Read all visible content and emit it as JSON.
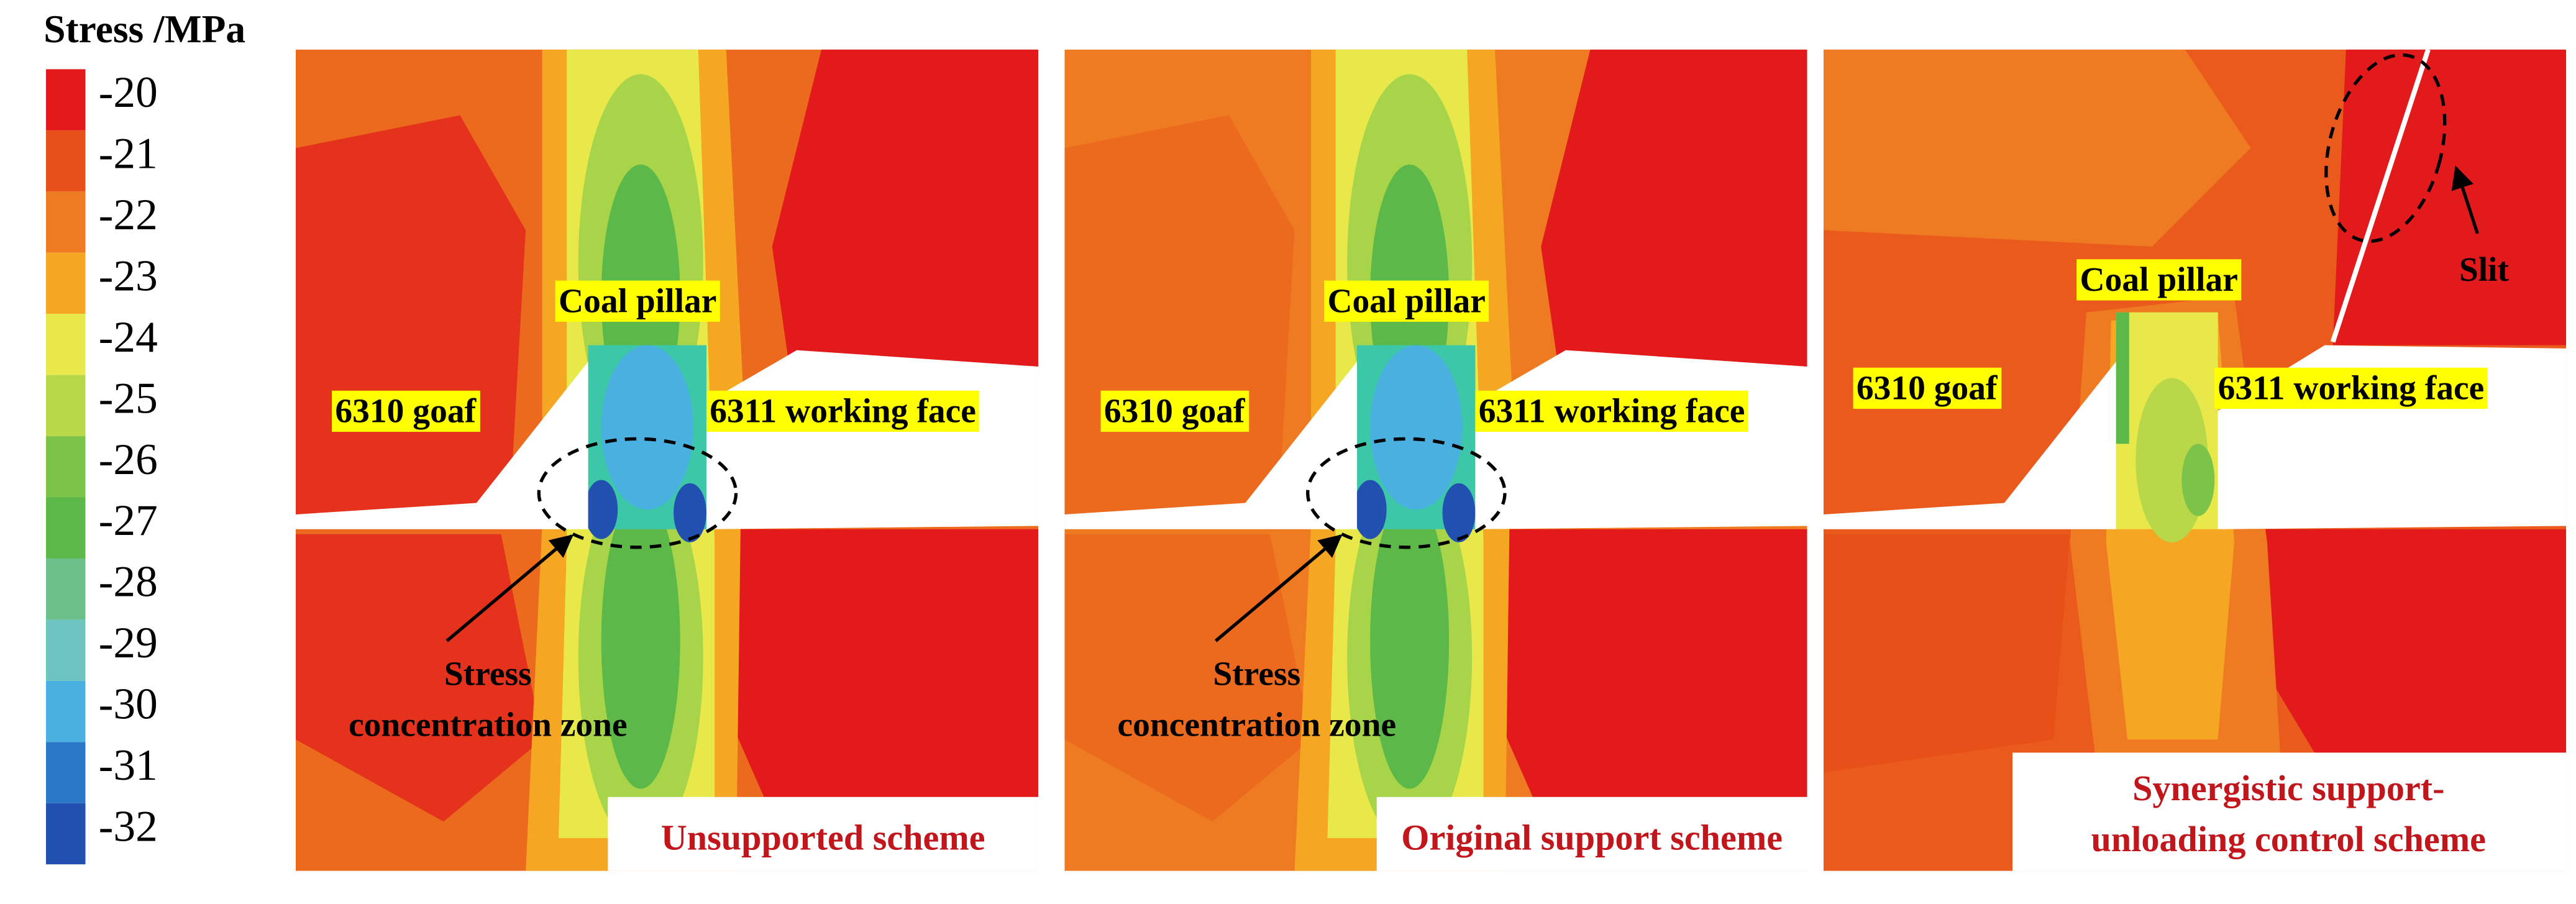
{
  "legend": {
    "title": "Stress /MPa",
    "levels": [
      -20,
      -21,
      -22,
      -23,
      -24,
      -25,
      -26,
      -27,
      -28,
      -29,
      -30,
      -31,
      -32
    ],
    "colors": [
      "#e31a1c",
      "#e8501a",
      "#ee7a22",
      "#f5a623",
      "#e8e84a",
      "#b8d84a",
      "#7cc34a",
      "#5cb848",
      "#6cc08a",
      "#6cc5c0",
      "#4ab0e0",
      "#2b78c8",
      "#2250b0"
    ]
  },
  "panels": [
    {
      "coal_pillar": "Coal pillar",
      "goaf": "6310 goaf",
      "working_face": "6311 working face",
      "zone": [
        "Stress",
        "concentration zone"
      ],
      "caption": [
        "Unsupported scheme"
      ]
    },
    {
      "coal_pillar": "Coal pillar",
      "goaf": "6310 goaf",
      "working_face": "6311 working face",
      "zone": [
        "Stress",
        "concentration zone"
      ],
      "caption": [
        "Original support scheme"
      ]
    },
    {
      "coal_pillar": "Coal pillar",
      "goaf": "6310 goaf",
      "working_face": "6311 working face",
      "slit": "Slit",
      "caption": [
        "Synergistic support-",
        "unloading control scheme"
      ]
    }
  ]
}
